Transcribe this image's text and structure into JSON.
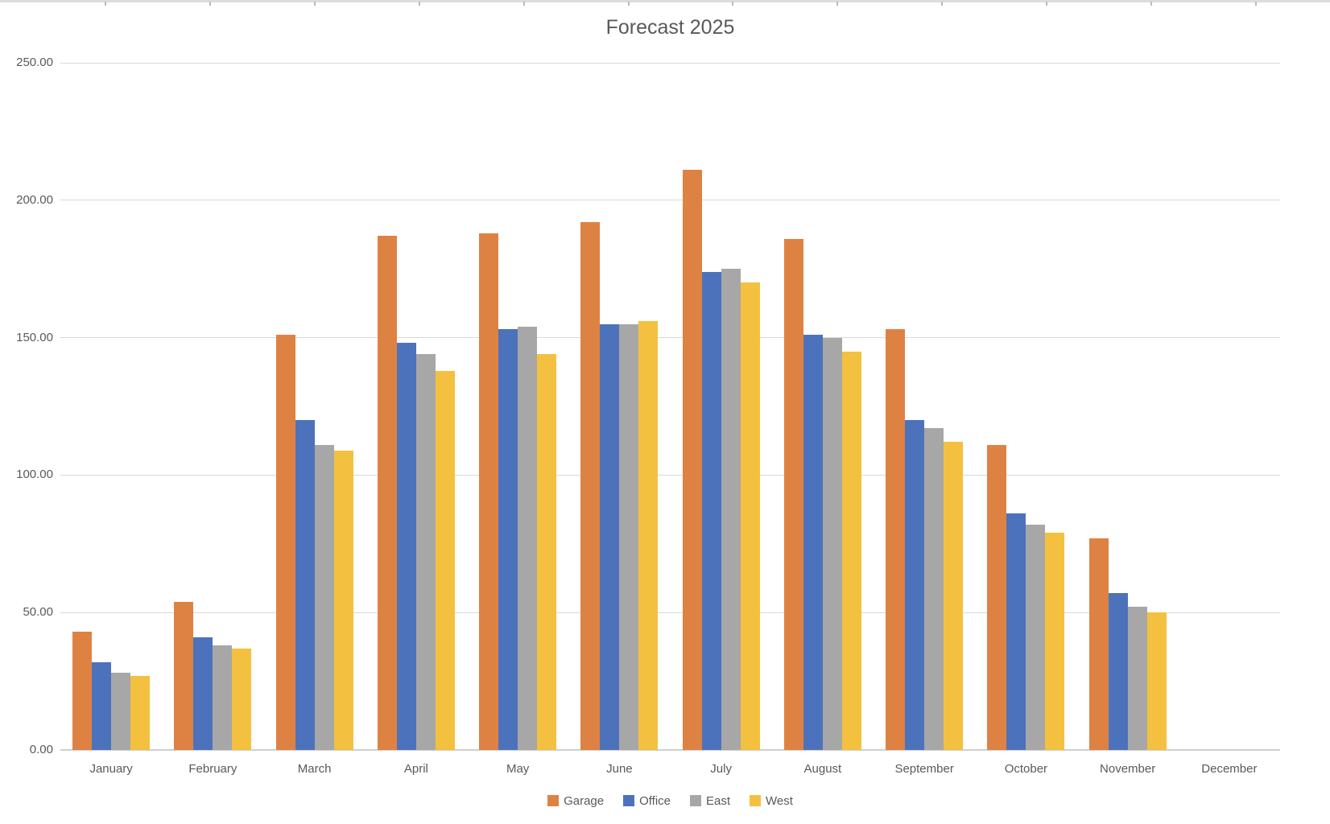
{
  "chart_data": {
    "type": "bar",
    "title": "Forecast 2025",
    "categories": [
      "January",
      "February",
      "March",
      "April",
      "May",
      "June",
      "July",
      "August",
      "September",
      "October",
      "November",
      "December"
    ],
    "series": [
      {
        "name": "Garage",
        "color": "#DE8244",
        "values": [
          43,
          54,
          151,
          187,
          188,
          192,
          211,
          186,
          153,
          111,
          77,
          0
        ]
      },
      {
        "name": "Office",
        "color": "#4D72BC",
        "values": [
          32,
          41,
          120,
          148,
          153,
          155,
          174,
          151,
          120,
          86,
          57,
          0
        ]
      },
      {
        "name": "East",
        "color": "#A7A7A7",
        "values": [
          28,
          38,
          111,
          144,
          154,
          155,
          175,
          150,
          117,
          82,
          52,
          0
        ]
      },
      {
        "name": "West",
        "color": "#F3C13F",
        "values": [
          27,
          37,
          109,
          138,
          144,
          156,
          170,
          145,
          112,
          79,
          50,
          0
        ]
      }
    ],
    "xlabel": "",
    "ylabel": "",
    "ylim": [
      0,
      250
    ],
    "yticks": [
      {
        "value": 0,
        "label": "0.00"
      },
      {
        "value": 50,
        "label": "50.00"
      },
      {
        "value": 100,
        "label": "100.00"
      },
      {
        "value": 150,
        "label": "150.00"
      },
      {
        "value": 200,
        "label": "200.00"
      },
      {
        "value": 250,
        "label": "250.00"
      }
    ],
    "grid": true,
    "legend_position": "bottom"
  },
  "theme": {
    "text_color": "#595959",
    "gridline_color": "#D9D9D9",
    "axis_line_color": "#D0D0D0",
    "background": "#FFFFFF",
    "ruler_color": "#DCDCDC",
    "ruler_tick_color": "#B9B9B9"
  }
}
